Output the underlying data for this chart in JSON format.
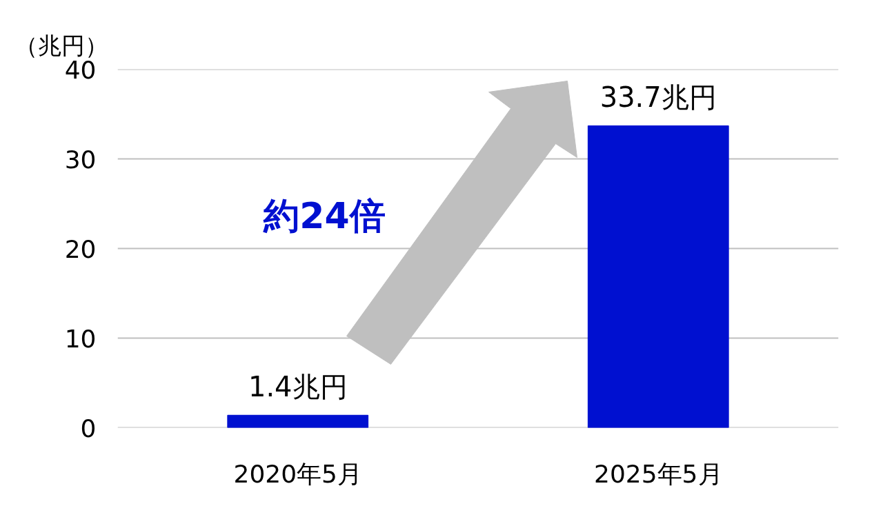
{
  "chart_data": {
    "type": "bar",
    "ylabel": "（兆円）",
    "categories": [
      "2020年5月",
      "2025年5月"
    ],
    "values": [
      1.4,
      33.7
    ],
    "color": "#0010d0",
    "value_labels": [
      "1.4兆円",
      "33.7兆円"
    ],
    "annotations": [
      "約24倍"
    ],
    "ylim": [
      0,
      40
    ],
    "yticks": [
      0,
      10,
      20,
      30,
      40
    ],
    "grid": "y"
  }
}
